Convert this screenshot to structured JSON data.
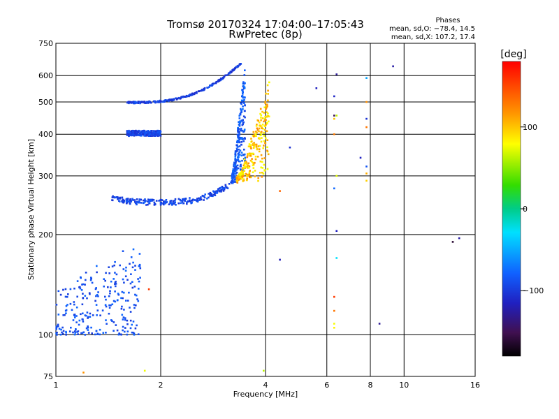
{
  "chart_data": {
    "type": "scatter",
    "title": "Tromsø 20170324 17:04:00–17:05:43",
    "subtitle": "RwPretec (8p)",
    "xlabel": "Frequency [MHz]",
    "ylabel": "Stationary phase Virtual Height [km]",
    "x_scale": "log",
    "y_scale": "log",
    "xlim": [
      1,
      16
    ],
    "ylim": [
      75,
      750
    ],
    "x_ticks": [
      1,
      2,
      4,
      6,
      8,
      10,
      16
    ],
    "x_tick_labels": [
      "1",
      "2",
      "4",
      "6",
      "8",
      "10",
      "16"
    ],
    "y_ticks": [
      75,
      100,
      200,
      300,
      400,
      500,
      600,
      750
    ],
    "y_tick_labels": [
      "75",
      "100",
      "200",
      "300",
      "400",
      "500",
      "600",
      "750"
    ],
    "grid": true,
    "phases_box": {
      "title": "Phases",
      "line_o": "mean, sd,O: −78.4, 14.5",
      "line_x": "mean, sd,X: 107.2, 17.4"
    },
    "colorbar": {
      "label": "[deg]",
      "range": [
        -180,
        180
      ],
      "tick_values": [
        100,
        0,
        -100
      ],
      "tick_labels": [
        "100",
        "0",
        "−100"
      ]
    },
    "traces": [
      {
        "f_start": 1.0,
        "f_end": 1.75,
        "h_min": 100,
        "h_max": 190,
        "phase": -90
      },
      {
        "f_start": 1.45,
        "f_end": 3.45,
        "h_min": 245,
        "h_max": 300,
        "phase": -95
      },
      {
        "f_start": 3.2,
        "f_end": 3.5,
        "h_min": 290,
        "h_max": 650,
        "phase": -85
      },
      {
        "f_start": 1.6,
        "f_end": 3.4,
        "h_min": 495,
        "h_max": 650,
        "phase": -100
      },
      {
        "f_start": 1.6,
        "f_end": 2.0,
        "h_min": 395,
        "h_max": 410,
        "phase": -95
      },
      {
        "f_start": 3.3,
        "f_end": 4.1,
        "h_min": 285,
        "h_max": 580,
        "phase": 110
      }
    ],
    "scattered_points": [
      {
        "x": 1.2,
        "y": 77,
        "phase": 120
      },
      {
        "x": 1.8,
        "y": 78,
        "phase": 90
      },
      {
        "x": 3.95,
        "y": 78,
        "phase": 80
      },
      {
        "x": 1.85,
        "y": 137,
        "phase": 170
      },
      {
        "x": 4.4,
        "y": 168,
        "phase": -130
      },
      {
        "x": 4.4,
        "y": 270,
        "phase": 130
      },
      {
        "x": 4.7,
        "y": 365,
        "phase": -100
      },
      {
        "x": 5.6,
        "y": 550,
        "phase": -110
      },
      {
        "x": 6.3,
        "y": 520,
        "phase": -120
      },
      {
        "x": 6.3,
        "y": 455,
        "phase": -140
      },
      {
        "x": 6.3,
        "y": 445,
        "phase": 100
      },
      {
        "x": 6.3,
        "y": 400,
        "phase": 120
      },
      {
        "x": 6.3,
        "y": 275,
        "phase": -80
      },
      {
        "x": 6.3,
        "y": 130,
        "phase": 160
      },
      {
        "x": 6.3,
        "y": 118,
        "phase": 130
      },
      {
        "x": 6.3,
        "y": 108,
        "phase": 110
      },
      {
        "x": 6.3,
        "y": 105,
        "phase": 100
      },
      {
        "x": 6.4,
        "y": 605,
        "phase": -120
      },
      {
        "x": 6.4,
        "y": 455,
        "phase": 80
      },
      {
        "x": 6.4,
        "y": 300,
        "phase": 100
      },
      {
        "x": 6.4,
        "y": 205,
        "phase": -120
      },
      {
        "x": 6.4,
        "y": 170,
        "phase": -20
      },
      {
        "x": 7.5,
        "y": 340,
        "phase": -110
      },
      {
        "x": 7.8,
        "y": 590,
        "phase": -60
      },
      {
        "x": 7.8,
        "y": 500,
        "phase": 120
      },
      {
        "x": 7.8,
        "y": 445,
        "phase": -120
      },
      {
        "x": 7.8,
        "y": 420,
        "phase": 120
      },
      {
        "x": 7.8,
        "y": 320,
        "phase": -90
      },
      {
        "x": 7.8,
        "y": 305,
        "phase": 130
      },
      {
        "x": 7.8,
        "y": 290,
        "phase": 120
      },
      {
        "x": 8.5,
        "y": 108,
        "phase": -120
      },
      {
        "x": 9.3,
        "y": 640,
        "phase": -140
      },
      {
        "x": 13.8,
        "y": 190,
        "phase": -150
      },
      {
        "x": 14.4,
        "y": 195,
        "phase": -140
      }
    ]
  }
}
